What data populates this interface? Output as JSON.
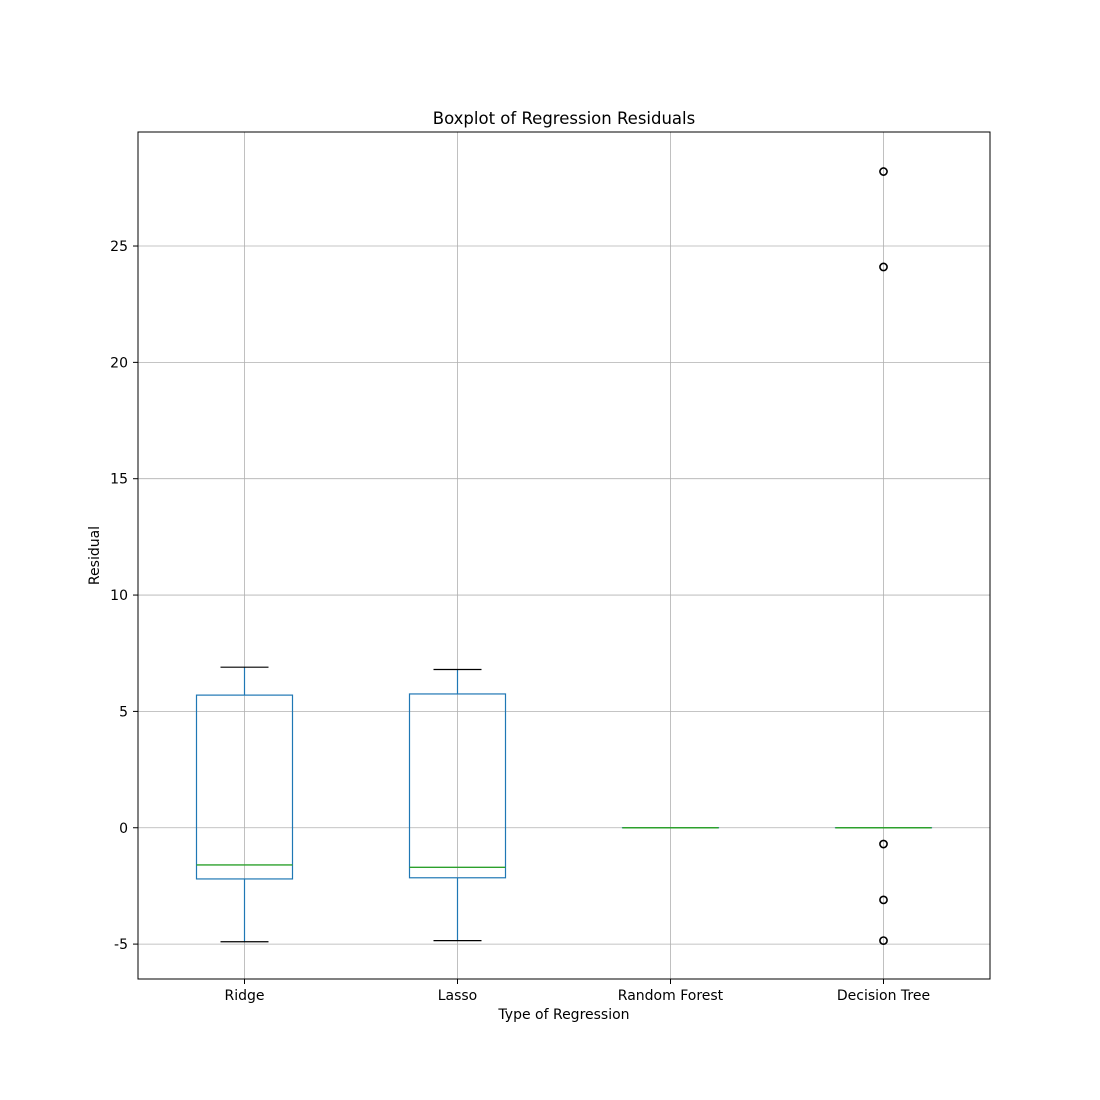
{
  "chart_data": {
    "type": "boxplot",
    "title": "Boxplot of Regression Residuals",
    "xlabel": "Type of Regression",
    "ylabel": "Residual",
    "ylim": [
      -6.5,
      29.9
    ],
    "yticks": [
      -5,
      0,
      5,
      10,
      15,
      20,
      25
    ],
    "grid": true,
    "colors": {
      "box": "#1f77b4",
      "median": "#2ca02c",
      "whisker_cap": "#000000",
      "grid": "#b0b0b0",
      "flier": "#000000"
    },
    "categories": [
      "Ridge",
      "Lasso",
      "Random Forest",
      "Decision Tree"
    ],
    "boxes": [
      {
        "name": "Ridge",
        "whislo": -4.9,
        "q1": -2.2,
        "med": -1.6,
        "q3": 5.7,
        "whishi": 6.9,
        "fliers": []
      },
      {
        "name": "Lasso",
        "whislo": -4.85,
        "q1": -2.15,
        "med": -1.7,
        "q3": 5.75,
        "whishi": 6.8,
        "fliers": []
      },
      {
        "name": "Random Forest",
        "whislo": 0.0,
        "q1": 0.0,
        "med": 0.0,
        "q3": 0.0,
        "whishi": 0.0,
        "fliers": []
      },
      {
        "name": "Decision Tree",
        "whislo": 0.0,
        "q1": 0.0,
        "med": 0.0,
        "q3": 0.0,
        "whishi": 0.0,
        "fliers": [
          28.2,
          24.1,
          -0.7,
          -3.1,
          -4.85
        ]
      }
    ]
  }
}
